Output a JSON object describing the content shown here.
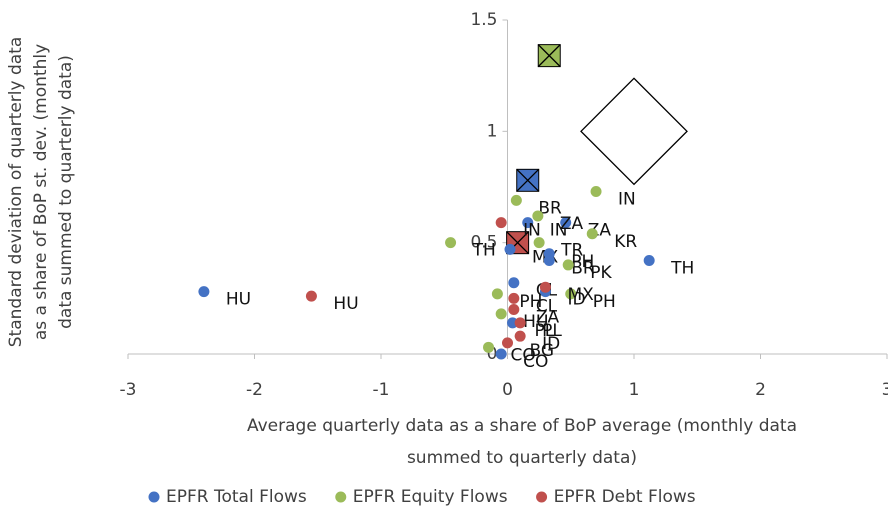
{
  "chart_data": {
    "type": "scatter",
    "x_label": [
      "Average quarterly data as a share of BoP average (monthly data",
      "summed to quarterly data)"
    ],
    "y_label": [
      "Standard deviation of quarterly data",
      "as a share of BoP st. dev. (monthly",
      "data summed to quarterly data)"
    ],
    "xlim": [
      -3,
      3
    ],
    "xticks": [
      -3,
      -2,
      -1,
      0,
      1,
      2,
      3
    ],
    "ylim": [
      0,
      1.5
    ],
    "yticks": [
      0,
      0.5,
      1,
      1.5
    ],
    "legend": "bottom",
    "series": [
      {
        "name": "EPFR Total Flows",
        "color": "#4472c4",
        "x": [
          -2.4,
          1.12,
          0.16,
          0.46,
          0.02,
          0.33,
          0.33,
          0.05,
          0.04,
          -0.05,
          0.3
        ],
        "values": [
          0.28,
          0.42,
          0.59,
          0.59,
          0.47,
          0.42,
          0.45,
          0.32,
          0.14,
          0.0,
          0.28
        ],
        "labels": [
          "HU",
          "TH",
          "IN",
          "ZA",
          "MX",
          "BR",
          "PH",
          "CL",
          "PL",
          "CO",
          "ID"
        ]
      },
      {
        "name": "EPFR Equity Flows",
        "color": "#9bbb59",
        "x": [
          0.7,
          0.07,
          0.24,
          0.67,
          -0.45,
          0.48,
          0.25,
          -0.08,
          -0.05,
          -0.15,
          0.5
        ],
        "values": [
          0.73,
          0.69,
          0.62,
          0.54,
          0.5,
          0.4,
          0.5,
          0.27,
          0.18,
          0.03,
          0.27
        ],
        "labels": [
          "IN",
          "BR",
          "ZA",
          "KR",
          "TH",
          "PK",
          "TR",
          "PH",
          "HU",
          "CO",
          "PH"
        ]
      },
      {
        "name": "EPFR Debt Flows",
        "color": "#c0504d",
        "x": [
          -1.55,
          -0.05,
          0.3,
          0.05,
          0.1,
          0.1,
          0.0,
          0.05
        ],
        "values": [
          0.26,
          0.59,
          0.3,
          0.25,
          0.14,
          0.08,
          0.05,
          0.2
        ],
        "labels": [
          "HU",
          "IN",
          "MX",
          "CL",
          "PL",
          "ID",
          "BG",
          "ZA"
        ]
      }
    ],
    "highlights": [
      {
        "shape": "diamond",
        "x": 1.0,
        "y": 1.0,
        "color": "#ffffff"
      },
      {
        "shape": "crossed-square",
        "x": 0.33,
        "y": 1.34,
        "color": "#9bbb59"
      },
      {
        "shape": "crossed-square",
        "x": 0.16,
        "y": 0.78,
        "color": "#4472c4"
      },
      {
        "shape": "crossed-square",
        "x": 0.08,
        "y": 0.5,
        "color": "#c0504d"
      }
    ]
  }
}
